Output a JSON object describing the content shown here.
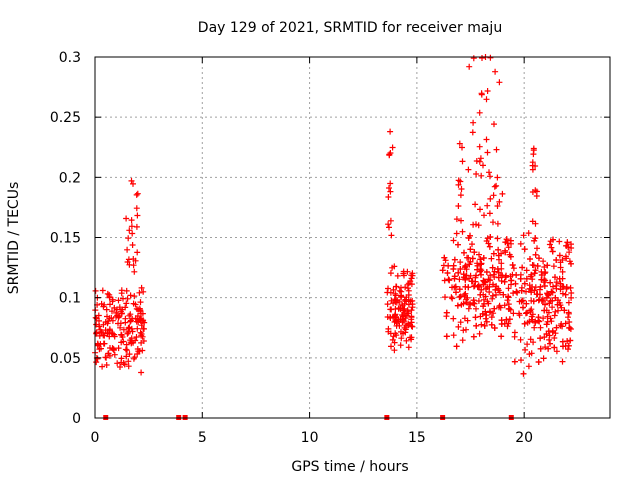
{
  "chart_data": {
    "type": "scatter",
    "title": "Day 129 of 2021, SRMTID for receiver maju",
    "xlabel": "GPS time / hours",
    "ylabel": "SRMTID / TECUs",
    "xlim": [
      0,
      24
    ],
    "ylim": [
      0,
      0.3
    ],
    "x_ticks": [
      0,
      5,
      10,
      15,
      20
    ],
    "x_tick_labels": [
      "0",
      "5",
      "10",
      "15",
      "20"
    ],
    "y_ticks": [
      0,
      0.05,
      0.1,
      0.15,
      0.2,
      0.25,
      0.3
    ],
    "y_tick_labels": [
      "0",
      "0.05",
      "0.1",
      "0.15",
      "0.2",
      "0.25",
      "0.3"
    ],
    "grid": true,
    "marker": "+",
    "color": "#ff0000",
    "zero_markers_x": [
      0.5,
      3.9,
      4.2,
      13.6,
      16.2,
      19.4
    ],
    "clusters": [
      {
        "x_start": 0.0,
        "x_end": 2.3,
        "count": 190,
        "y_base_min": 0.035,
        "y_base_max": 0.115,
        "spikes": [
          {
            "x_start": 1.4,
            "x_end": 2.0,
            "y_min": 0.12,
            "y_max": 0.197,
            "count": 22
          }
        ]
      },
      {
        "x_start": 13.6,
        "x_end": 14.8,
        "count": 130,
        "y_base_min": 0.045,
        "y_base_max": 0.13,
        "spikes": [
          {
            "x_start": 13.6,
            "x_end": 13.9,
            "y_min": 0.15,
            "y_max": 0.238,
            "count": 12
          }
        ]
      },
      {
        "x_start": 16.2,
        "x_end": 19.4,
        "count": 330,
        "y_base_min": 0.05,
        "y_base_max": 0.16,
        "spikes": [
          {
            "x_start": 16.8,
            "x_end": 17.2,
            "y_min": 0.16,
            "y_max": 0.228,
            "count": 10
          },
          {
            "x_start": 17.4,
            "x_end": 19.0,
            "y_min": 0.16,
            "y_max": 0.3,
            "count": 45
          }
        ]
      },
      {
        "x_start": 19.4,
        "x_end": 22.2,
        "count": 310,
        "y_base_min": 0.025,
        "y_base_max": 0.16,
        "spikes": [
          {
            "x_start": 20.3,
            "x_end": 20.6,
            "y_min": 0.16,
            "y_max": 0.224,
            "count": 12
          }
        ]
      }
    ]
  }
}
